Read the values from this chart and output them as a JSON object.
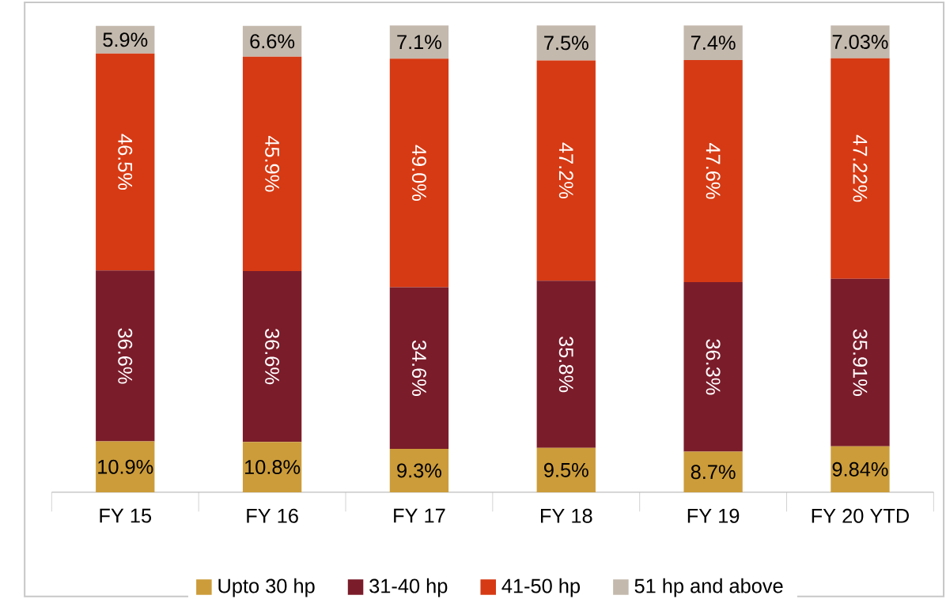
{
  "chart_data": {
    "type": "bar",
    "stacked": true,
    "categories": [
      "FY 15",
      "FY 16",
      "FY 17",
      "FY 18",
      "FY 19",
      "FY 20 YTD"
    ],
    "tick_labels": "x",
    "legend": "bottom",
    "series": [
      {
        "name": "Upto 30 hp",
        "color": "#cc9c3a",
        "values": [
          10.9,
          10.8,
          9.3,
          9.5,
          8.7,
          9.84
        ],
        "value_labels": [
          "10.9%",
          "10.8%",
          "9.3%",
          "9.5%",
          "8.7%",
          "9.84%"
        ]
      },
      {
        "name": "31-40 hp",
        "color": "#7b1c2a",
        "values": [
          36.6,
          36.6,
          34.6,
          35.8,
          36.3,
          35.91
        ],
        "value_labels": [
          "36.6%",
          "36.6%",
          "34.6%",
          "35.8%",
          "36.3%",
          "35.91%"
        ]
      },
      {
        "name": "41-50 hp",
        "color": "#d63a14",
        "values": [
          46.5,
          45.9,
          49.0,
          47.2,
          47.6,
          47.22
        ],
        "value_labels": [
          "46.5%",
          "45.9%",
          "49.0%",
          "47.2%",
          "47.6%",
          "47.22%"
        ]
      },
      {
        "name": "51 hp and above",
        "color": "#c4b9ad",
        "values": [
          5.9,
          6.6,
          7.1,
          7.5,
          7.4,
          7.03
        ],
        "value_labels": [
          "5.9%",
          "6.6%",
          "7.1%",
          "7.5%",
          "7.4%",
          "7.03%"
        ]
      }
    ]
  }
}
